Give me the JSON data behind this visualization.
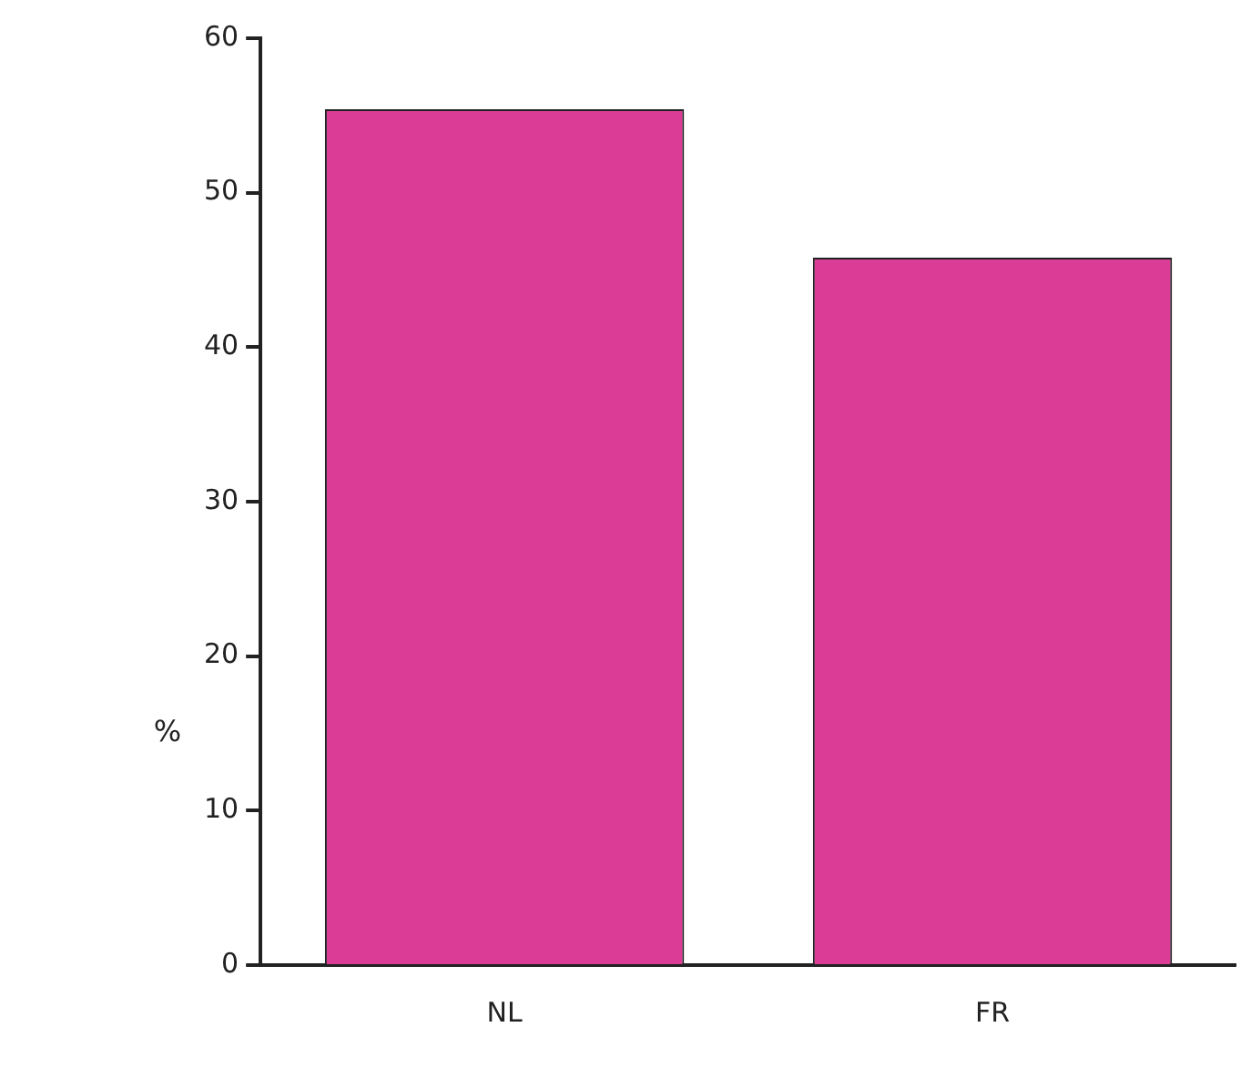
{
  "chart_data": {
    "type": "bar",
    "ylabel": "%",
    "categories": [
      "NL",
      "FR"
    ],
    "values": [
      55.4,
      45.8
    ],
    "color": "#db3d96",
    "ylim": [
      0,
      60
    ],
    "yticks": [
      0,
      10,
      20,
      30,
      40,
      50,
      60
    ],
    "grid": false,
    "legend": false
  }
}
